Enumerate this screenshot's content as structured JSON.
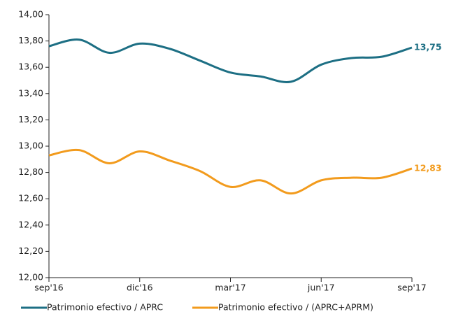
{
  "chart_data": {
    "type": "line",
    "categories": [
      "sep'16",
      null,
      null,
      "dic'16",
      null,
      null,
      "mar'17",
      null,
      null,
      "jun'17",
      null,
      null,
      "sep'17"
    ],
    "series": [
      {
        "name": "Patrimonio efectivo / APRC",
        "color": "#1d6f84",
        "values": [
          13.76,
          13.81,
          13.71,
          13.78,
          13.74,
          13.65,
          13.56,
          13.53,
          13.49,
          13.62,
          13.67,
          13.68,
          13.75
        ],
        "value_labels": [
          null,
          null,
          null,
          null,
          null,
          null,
          null,
          null,
          null,
          null,
          null,
          null,
          "13,75"
        ]
      },
      {
        "name": "Patrimonio efectivo / (APRC+APRM)",
        "color": "#f29b1d",
        "values": [
          12.93,
          12.97,
          12.87,
          12.96,
          12.89,
          12.81,
          12.69,
          12.74,
          12.64,
          12.74,
          12.76,
          12.76,
          12.83
        ],
        "value_labels": [
          null,
          null,
          null,
          null,
          null,
          null,
          null,
          null,
          null,
          null,
          null,
          null,
          "12,83"
        ]
      }
    ],
    "ylim": [
      12,
      14
    ],
    "yticks": [
      {
        "value": 12,
        "label": "12,00"
      },
      {
        "value": 12.2,
        "label": "12,20"
      },
      {
        "value": 12.4,
        "label": "12,40"
      },
      {
        "value": 12.6,
        "label": "12,60"
      },
      {
        "value": 12.8,
        "label": "12,80"
      },
      {
        "value": 13,
        "label": "13,00"
      },
      {
        "value": 13.2,
        "label": "13,20"
      },
      {
        "value": 13.4,
        "label": "13,40"
      },
      {
        "value": 13.6,
        "label": "13,60"
      },
      {
        "value": 13.8,
        "label": "13,80"
      },
      {
        "value": 14,
        "label": "14,00"
      }
    ],
    "legend": "bottom"
  }
}
